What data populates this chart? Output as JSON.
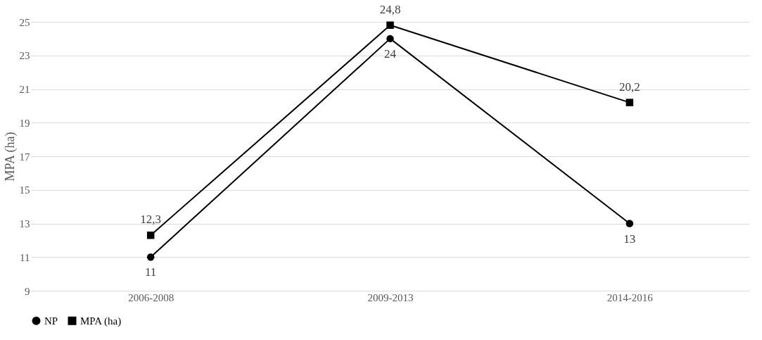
{
  "chart_data": {
    "type": "line",
    "ylabel": "MPA (ha)",
    "categories": [
      "2006-2008",
      "2009-2013",
      "2014-2016"
    ],
    "series": [
      {
        "name": "NP",
        "color": "#000000",
        "marker": "circle",
        "values": [
          11,
          24,
          13
        ],
        "value_labels": [
          "11",
          "24",
          "13"
        ]
      },
      {
        "name": "MPA (ha)",
        "color": "#000000",
        "marker": "square",
        "values": [
          12.3,
          24.8,
          20.2
        ],
        "value_labels": [
          "12,3",
          "24,8",
          "20,2"
        ]
      }
    ],
    "ylim": [
      9,
      25
    ],
    "yticks": [
      9,
      11,
      13,
      15,
      17,
      19,
      21,
      23,
      25
    ],
    "grid": "y",
    "legend": "bottom",
    "line_style": "solid"
  }
}
